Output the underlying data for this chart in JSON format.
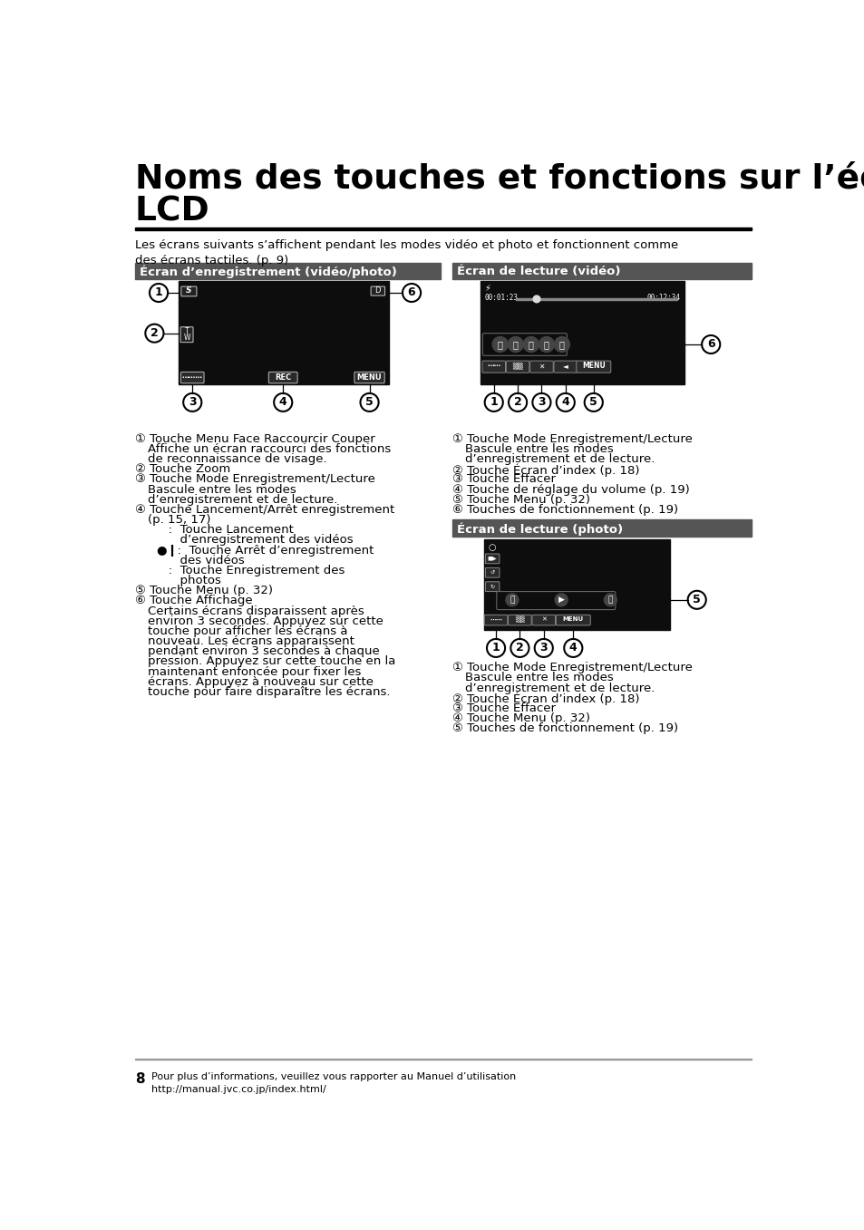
{
  "title_line1": "Noms des touches et fonctions sur l’écran",
  "title_line2": "LCD",
  "subtitle": "Les écrans suivants s’affichent pendant les modes vidéo et photo et fonctionnent comme\ndes écrans tactiles. (p. 9)",
  "section1_title": "Écran d’enregistrement (vidéo/photo)",
  "section2_title": "Écran de lecture (vidéo)",
  "section3_title": "Écran de lecture (photo)",
  "footer_number": "8",
  "footer_text": "Pour plus d’informations, veuillez vous rapporter au Manuel d’utilisation\nhttp://manual.jvc.co.jp/index.html/",
  "bg_color": "#ffffff",
  "header_color": "#555555",
  "screen_color": "#0d0d0d"
}
